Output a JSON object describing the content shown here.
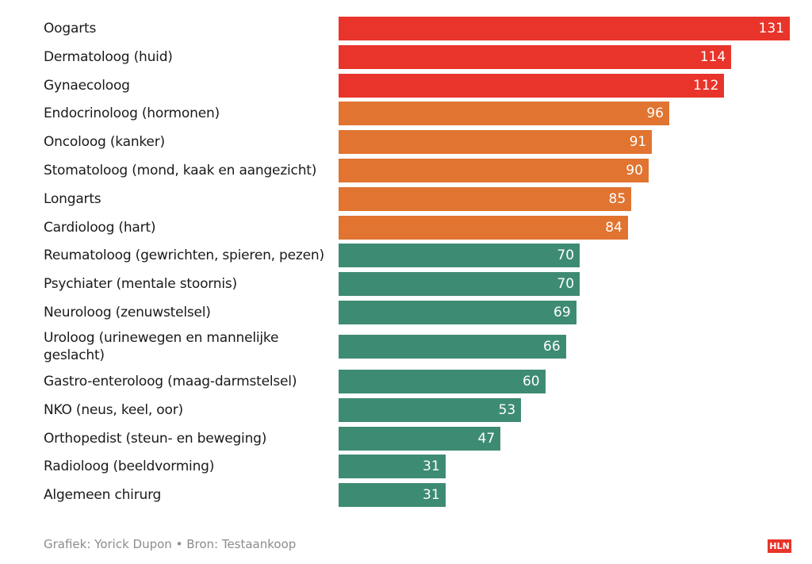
{
  "chart_data": {
    "type": "bar",
    "orientation": "horizontal",
    "categories": [
      "Oogarts",
      "Dermatoloog (huid)",
      "Gynaecoloog",
      "Endocrinoloog (hormonen)",
      "Oncoloog (kanker)",
      "Stomatoloog (mond, kaak en aangezicht)",
      "Longarts",
      "Cardioloog (hart)",
      "Reumatoloog (gewrichten, spieren, pezen)",
      "Psychiater (mentale stoornis)",
      "Neuroloog (zenuwstelsel)",
      "Uroloog (urinewegen en mannelijke geslacht)",
      "Gastro-enteroloog (maag-darmstelsel)",
      "NKO (neus, keel, oor)",
      "Orthopedist (steun- en beweging)",
      "Radioloog (beeldvorming)",
      "Algemeen chirurg"
    ],
    "values": [
      131,
      114,
      112,
      96,
      91,
      90,
      85,
      84,
      70,
      70,
      69,
      66,
      60,
      53,
      47,
      31,
      31
    ],
    "bar_colors": [
      "#e8342a",
      "#e8342a",
      "#e8342a",
      "#e07430",
      "#e07430",
      "#e07430",
      "#e07430",
      "#e07430",
      "#3e8b74",
      "#3e8b74",
      "#3e8b74",
      "#3e8b74",
      "#3e8b74",
      "#3e8b74",
      "#3e8b74",
      "#3e8b74",
      "#3e8b74"
    ],
    "xlim": [
      0,
      131
    ],
    "grid": false,
    "legend": "none"
  },
  "footer": {
    "credit": "Grafiek: Yorick Dupon • Bron: Testaankoop"
  },
  "logo": {
    "text": "HLN",
    "color": "#e8342a"
  }
}
